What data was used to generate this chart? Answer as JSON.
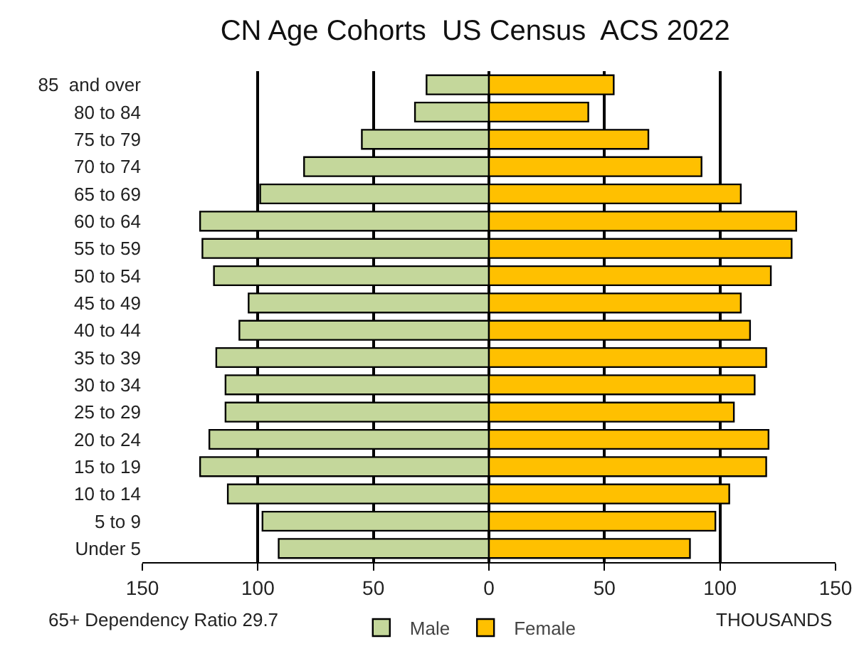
{
  "chart_data": {
    "type": "bar",
    "orientation": "horizontal",
    "title": "CN Age Cohorts  US Census  ACS 2022",
    "categories": [
      "85  and over",
      "80 to 84",
      "75 to 79",
      "70 to 74",
      "65 to 69",
      "60 to 64",
      "55 to 59",
      "50 to 54",
      "45 to 49",
      "40 to 44",
      "35 to 39",
      "30 to 34",
      "25 to 29",
      "20 to 24",
      "15 to 19",
      "10 to 14",
      "5 to 9",
      "Under 5"
    ],
    "series": [
      {
        "name": "Male",
        "color": "#c4d79b",
        "values": [
          -27,
          -32,
          -55,
          -80,
          -99,
          -125,
          -124,
          -119,
          -104,
          -108,
          -118,
          -114,
          -114,
          -121,
          -125,
          -113,
          -98,
          -91
        ]
      },
      {
        "name": "Female",
        "color": "#ffc000",
        "values": [
          54,
          43,
          69,
          92,
          109,
          133,
          131,
          122,
          109,
          113,
          120,
          115,
          106,
          121,
          120,
          104,
          98,
          87
        ]
      }
    ],
    "xlim": [
      -150,
      150
    ],
    "xticks": [
      {
        "value": -150,
        "label": "150"
      },
      {
        "value": -100,
        "label": "100"
      },
      {
        "value": -50,
        "label": "50"
      },
      0,
      50,
      100,
      150
    ],
    "stacked": true,
    "grid": "x",
    "legend": "bottom",
    "annotations": [
      "65+ Dependency Ratio 29.7",
      "THOUSANDS"
    ]
  }
}
